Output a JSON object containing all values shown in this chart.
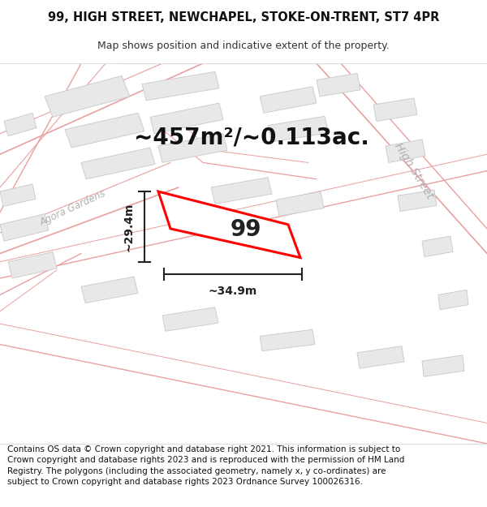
{
  "title_line1": "99, HIGH STREET, NEWCHAPEL, STOKE-ON-TRENT, ST7 4PR",
  "title_line2": "Map shows position and indicative extent of the property.",
  "area_label": "~457m²/~0.113ac.",
  "property_number": "99",
  "dim_width": "~34.9m",
  "dim_height": "~29.4m",
  "footer_text": "Contains OS data © Crown copyright and database right 2021. This information is subject to Crown copyright and database rights 2023 and is reproduced with the permission of HM Land Registry. The polygons (including the associated geometry, namely x, y co-ordinates) are subject to Crown copyright and database rights 2023 Ordnance Survey 100026316.",
  "road_color": "#f5c8c8",
  "road_line": "#e8a0a0",
  "building_fill": "#e8e8e8",
  "building_edge": "#c8c8c8",
  "map_bg": "#ffffff",
  "highlight_stroke": "#ff0000",
  "title_fontsize": 10.5,
  "subtitle_fontsize": 9,
  "area_fontsize": 20,
  "number_fontsize": 20,
  "footer_fontsize": 7.5,
  "street_label_color": "#b0b0b0",
  "street_label_fontsize": 10,
  "dim_fontsize": 10
}
